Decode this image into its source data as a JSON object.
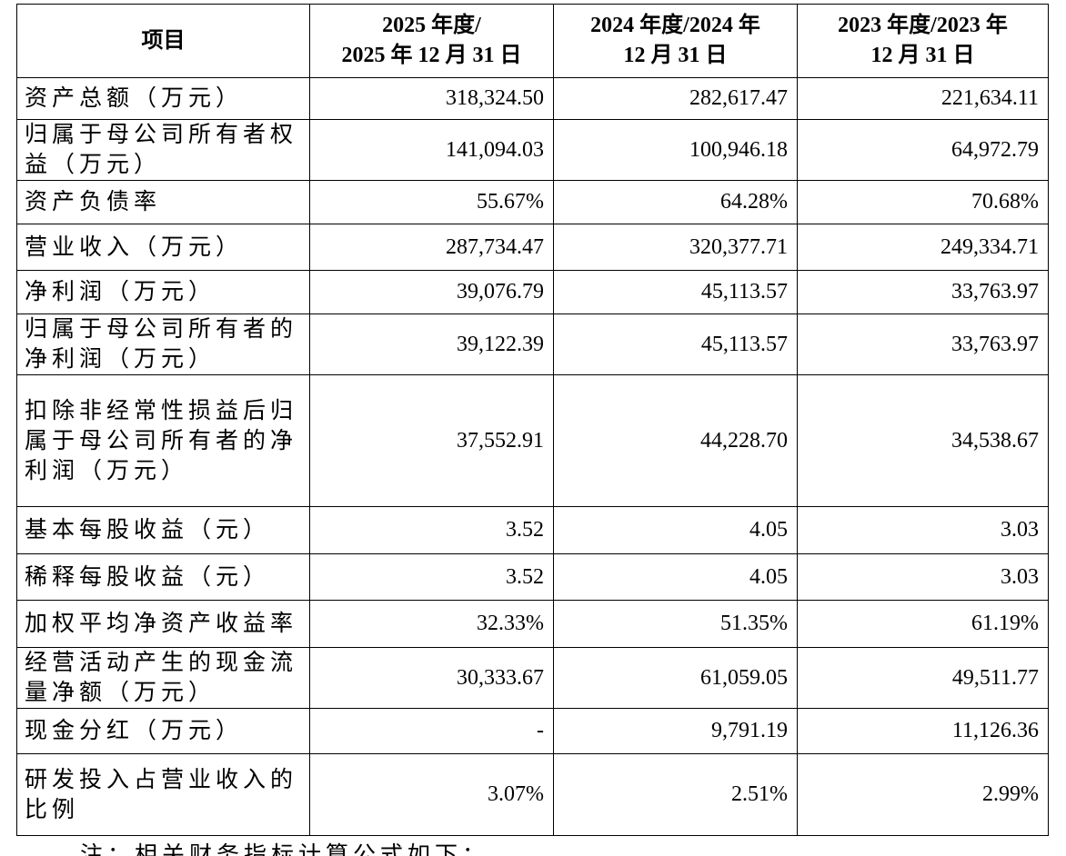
{
  "table": {
    "header": [
      [
        "项目"
      ],
      [
        "2025 年度/",
        "2025 年 12 月 31 日"
      ],
      [
        "2024 年度/2024 年",
        "12 月 31 日"
      ],
      [
        "2023 年度/2023 年",
        "12 月 31 日"
      ]
    ],
    "rows": [
      [
        "资产总额（万元）",
        "318,324.50",
        "282,617.47",
        "221,634.11"
      ],
      [
        "归属于母公司所有者权益（万元）",
        "141,094.03",
        "100,946.18",
        "64,972.79"
      ],
      [
        "资产负债率",
        "55.67%",
        "64.28%",
        "70.68%"
      ],
      [
        "营业收入（万元）",
        "287,734.47",
        "320,377.71",
        "249,334.71"
      ],
      [
        "净利润（万元）",
        "39,076.79",
        "45,113.57",
        "33,763.97"
      ],
      [
        "归属于母公司所有者的净利润（万元）",
        "39,122.39",
        "45,113.57",
        "33,763.97"
      ],
      [
        "扣除非经常性损益后归属于母公司所有者的净利润（万元）",
        "37,552.91",
        "44,228.70",
        "34,538.67"
      ],
      [
        "基本每股收益（元）",
        "3.52",
        "4.05",
        "3.03"
      ],
      [
        "稀释每股收益（元）",
        "3.52",
        "4.05",
        "3.03"
      ],
      [
        "加权平均净资产收益率",
        "32.33%",
        "51.35%",
        "61.19%"
      ],
      [
        "经营活动产生的现金流量净额（万元）",
        "30,333.67",
        "61,059.05",
        "49,511.77"
      ],
      [
        "现金分红（万元）",
        "-",
        "9,791.19",
        "11,126.36"
      ],
      [
        "研发投入占营业收入的比例",
        "3.07%",
        "2.51%",
        "2.99%"
      ]
    ]
  },
  "note": "注：相关财务指标计算公式如下："
}
